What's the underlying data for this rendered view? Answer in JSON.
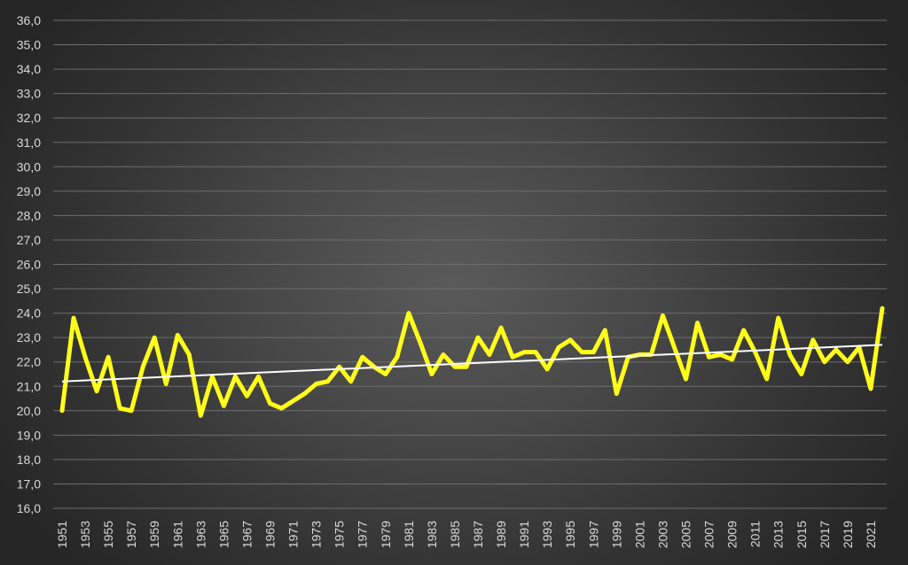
{
  "chart_data": {
    "type": "line",
    "title": "",
    "xlabel": "",
    "ylabel": "",
    "ylim": [
      16,
      36
    ],
    "y_ticks": [
      "16,0",
      "17,0",
      "18,0",
      "19,0",
      "20,0",
      "21,0",
      "22,0",
      "23,0",
      "24,0",
      "25,0",
      "26,0",
      "27,0",
      "28,0",
      "29,0",
      "30,0",
      "31,0",
      "32,0",
      "33,0",
      "34,0",
      "35,0",
      "36,0"
    ],
    "x_ticks": [
      "1951",
      "1953",
      "1955",
      "1957",
      "1959",
      "1961",
      "1963",
      "1965",
      "1967",
      "1969",
      "1971",
      "1973",
      "1975",
      "1977",
      "1979",
      "1981",
      "1983",
      "1985",
      "1987",
      "1989",
      "1991",
      "1993",
      "1995",
      "1997",
      "1999",
      "2001",
      "2003",
      "2005",
      "2007",
      "2009",
      "2011",
      "2013",
      "2015",
      "2017",
      "2019",
      "2021"
    ],
    "grid": true,
    "legend": "none",
    "colors": {
      "series": "#ffff1a",
      "trend": "#ffffff",
      "grid": "#6e6e6e",
      "ticks": "#d9d9d9"
    },
    "x": [
      1951,
      1952,
      1953,
      1954,
      1955,
      1956,
      1957,
      1958,
      1959,
      1960,
      1961,
      1962,
      1963,
      1964,
      1965,
      1966,
      1967,
      1968,
      1969,
      1970,
      1971,
      1972,
      1973,
      1974,
      1975,
      1976,
      1977,
      1978,
      1979,
      1980,
      1981,
      1982,
      1983,
      1984,
      1985,
      1986,
      1987,
      1988,
      1989,
      1990,
      1991,
      1992,
      1993,
      1994,
      1995,
      1996,
      1997,
      1998,
      1999,
      2000,
      2001,
      2002,
      2003,
      2004,
      2005,
      2006,
      2007,
      2008,
      2009,
      2010,
      2011,
      2012,
      2013,
      2014,
      2015,
      2016,
      2017,
      2018,
      2019,
      2020,
      2021,
      2022
    ],
    "series": [
      {
        "values": [
          20.0,
          23.8,
          22.2,
          20.8,
          22.2,
          20.1,
          20.0,
          21.8,
          23.0,
          21.1,
          23.1,
          22.3,
          19.8,
          21.4,
          20.2,
          21.4,
          20.6,
          21.4,
          20.3,
          20.1,
          20.4,
          20.7,
          21.1,
          21.2,
          21.8,
          21.2,
          22.2,
          21.8,
          21.5,
          22.2,
          24.0,
          22.8,
          21.5,
          22.3,
          21.8,
          21.8,
          23.0,
          22.3,
          23.4,
          22.2,
          22.4,
          22.4,
          21.7,
          22.6,
          22.9,
          22.4,
          22.4,
          23.3,
          20.7,
          22.2,
          22.3,
          22.3,
          23.9,
          22.6,
          21.3,
          23.6,
          22.2,
          22.3,
          22.1,
          23.3,
          22.4,
          21.3,
          23.8,
          22.3,
          21.5,
          22.9,
          22.0,
          22.5,
          22.0,
          22.6,
          20.9,
          24.2
        ]
      },
      {
        "values": [
          21.2,
          22.7
        ],
        "x": [
          1951,
          2022
        ]
      }
    ]
  }
}
